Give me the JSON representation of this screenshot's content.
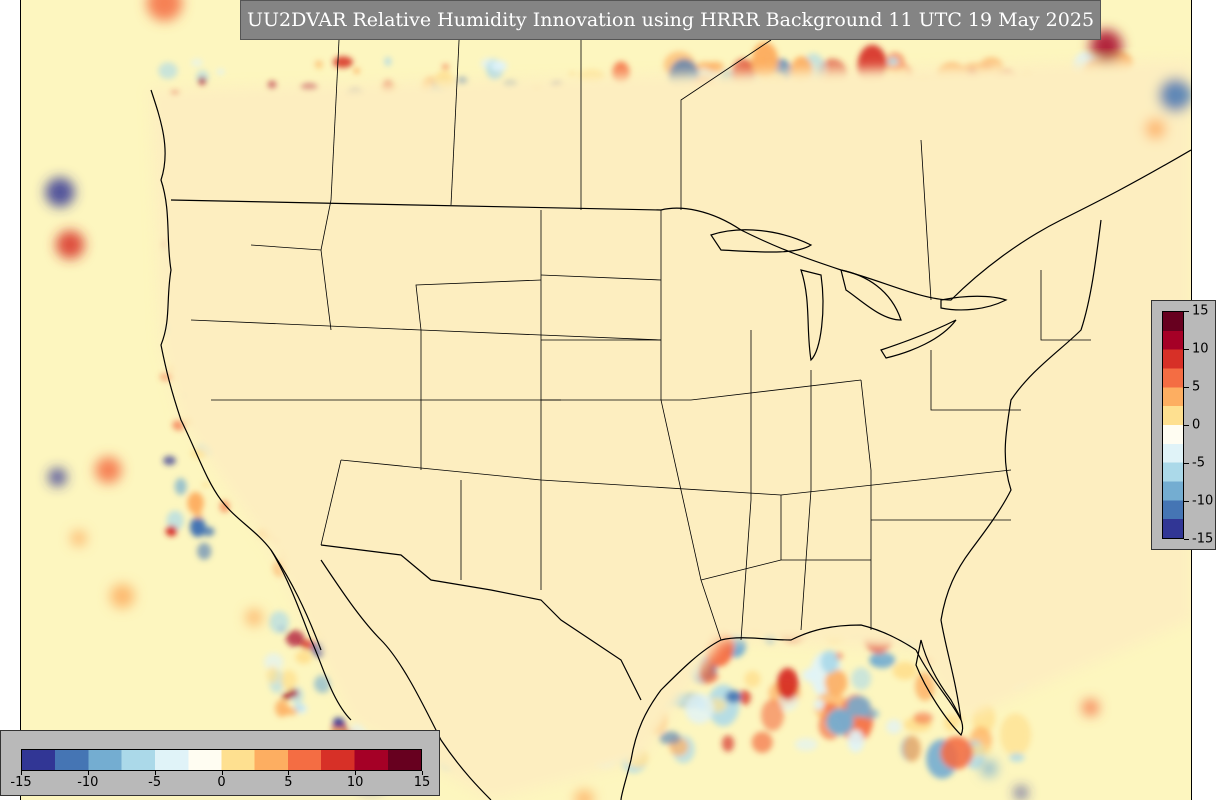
{
  "title": "UU2DVAR Relative Humidity Innovation using HRRR Background 11 UTC 19 May 2025",
  "colorbar": {
    "ticks_right": [
      "15",
      "10",
      "5",
      "0",
      "-5",
      "-10",
      "-15"
    ],
    "ticks_bottom": [
      "-15",
      "-10",
      "-5",
      "0",
      "5",
      "10",
      "15"
    ],
    "min": -15,
    "max": 15,
    "colors": [
      "#313695",
      "#4575b4",
      "#74add1",
      "#abd9e9",
      "#e0f3f8",
      "#fffdf2",
      "#fee090",
      "#fdae61",
      "#f46d43",
      "#d73027",
      "#a50026",
      "#67001f"
    ]
  },
  "map": {
    "background_color": "#fdf6bf",
    "land_color": "#fdeec0"
  }
}
